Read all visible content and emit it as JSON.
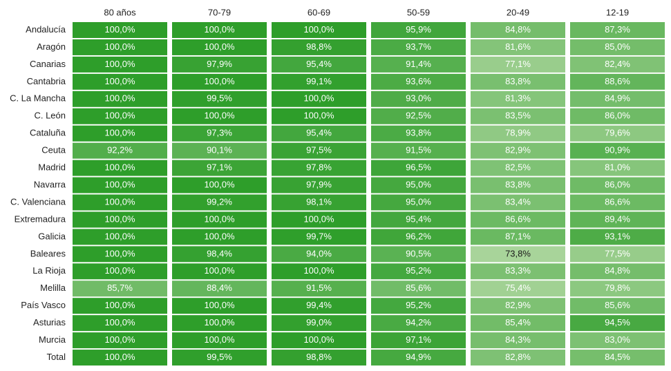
{
  "chart_data": {
    "type": "heatmap",
    "columns": [
      "80 años",
      "70-79",
      "60-69",
      "50-59",
      "20-49",
      "12-19"
    ],
    "rows": [
      "Andalucía",
      "Aragón",
      "Canarias",
      "Cantabria",
      "C. La Mancha",
      "C. León",
      "Cataluña",
      "Ceuta",
      "Madrid",
      "Navarra",
      "C. Valenciana",
      "Extremadura",
      "Galicia",
      "Baleares",
      "La Rioja",
      "Melilla",
      "País Vasco",
      "Asturias",
      "Murcia",
      "Total"
    ],
    "values": [
      [
        100.0,
        100.0,
        100.0,
        95.9,
        84.8,
        87.3
      ],
      [
        100.0,
        100.0,
        98.8,
        93.7,
        81.6,
        85.0
      ],
      [
        100.0,
        97.9,
        95.4,
        91.4,
        77.1,
        82.4
      ],
      [
        100.0,
        100.0,
        99.1,
        93.6,
        83.8,
        88.6
      ],
      [
        100.0,
        99.5,
        100.0,
        93.0,
        81.3,
        84.9
      ],
      [
        100.0,
        100.0,
        100.0,
        92.5,
        83.5,
        86.0
      ],
      [
        100.0,
        97.3,
        95.4,
        93.8,
        78.9,
        79.6
      ],
      [
        92.2,
        90.1,
        97.5,
        91.5,
        82.9,
        90.9
      ],
      [
        100.0,
        97.1,
        97.8,
        96.5,
        82.5,
        81.0
      ],
      [
        100.0,
        100.0,
        97.9,
        95.0,
        83.8,
        86.0
      ],
      [
        100.0,
        99.2,
        98.1,
        95.0,
        83.4,
        86.6
      ],
      [
        100.0,
        100.0,
        100.0,
        95.4,
        86.6,
        89.4
      ],
      [
        100.0,
        100.0,
        99.7,
        96.2,
        87.1,
        93.1
      ],
      [
        100.0,
        98.4,
        94.0,
        90.5,
        73.8,
        77.5
      ],
      [
        100.0,
        100.0,
        100.0,
        95.2,
        83.3,
        84.8
      ],
      [
        85.7,
        88.4,
        91.5,
        85.6,
        75.4,
        79.8
      ],
      [
        100.0,
        100.0,
        99.4,
        95.2,
        82.9,
        85.6
      ],
      [
        100.0,
        100.0,
        99.0,
        94.2,
        85.4,
        94.5
      ],
      [
        100.0,
        100.0,
        100.0,
        97.1,
        84.3,
        83.0
      ],
      [
        100.0,
        99.5,
        98.8,
        94.9,
        82.8,
        84.5
      ]
    ],
    "value_format": "one decimal, comma separator, percent sign",
    "color_scale": {
      "low_value": 73.8,
      "high_value": 100.0,
      "low_color": "#a8d49a",
      "high_color": "#2e9e2a"
    },
    "text_colors": {
      "light": "#ffffff",
      "dark": "#1a1a1a"
    }
  }
}
